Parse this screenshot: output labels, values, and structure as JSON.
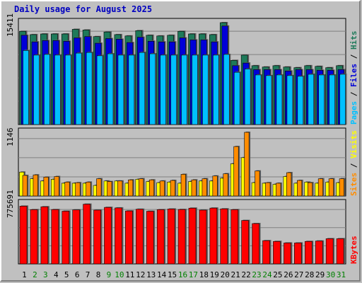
{
  "chart_data": {
    "type": "bar",
    "title": "Daily usage for August 2025",
    "days": [
      "1",
      "2",
      "3",
      "4",
      "5",
      "6",
      "7",
      "8",
      "9",
      "10",
      "11",
      "12",
      "13",
      "14",
      "15",
      "16",
      "17",
      "18",
      "19",
      "20",
      "21",
      "22",
      "23",
      "24",
      "25",
      "26",
      "27",
      "28",
      "29",
      "30",
      "31"
    ],
    "weekend_days": [
      "2",
      "3",
      "9",
      "10",
      "16",
      "17",
      "23",
      "24",
      "30",
      "31"
    ],
    "colors": {
      "hits": "#1e7a5a",
      "files": "#0000d8",
      "pages": "#00c0ff",
      "visits": "#ffff00",
      "sites": "#ff8c00",
      "kbytes": "#ff0000",
      "weekday_label": "#000000",
      "weekend_label": "#008000"
    },
    "panels": [
      {
        "id": "hits-files-pages",
        "max_label": "15411",
        "max": 15411,
        "legend": [
          {
            "text": "Pages",
            "color": "#00c0ff"
          },
          {
            "text": " / ",
            "color": "#000000"
          },
          {
            "text": "Files",
            "color": "#0000d8"
          },
          {
            "text": " / ",
            "color": "#000000"
          },
          {
            "text": "Hits",
            "color": "#1e7a5a"
          }
        ],
        "series": [
          {
            "name": "Hits",
            "values": [
              14100,
              13600,
              13700,
              13700,
              13700,
              14400,
              14300,
              13300,
              14000,
              13600,
              13400,
              14200,
              13500,
              13400,
              13500,
              14100,
              13700,
              13700,
              13600,
              15411,
              9700,
              10500,
              8900,
              8700,
              8900,
              8700,
              8600,
              8900,
              8800,
              8600,
              8900
            ]
          },
          {
            "name": "Files",
            "values": [
              13500,
              12500,
              12700,
              12700,
              12600,
              13100,
              13300,
              12300,
              13000,
              12900,
              12400,
              13200,
              12600,
              12500,
              12500,
              13100,
              12800,
              12800,
              12500,
              14900,
              8900,
              9300,
              8300,
              8300,
              8300,
              8100,
              8300,
              8300,
              8200,
              8200,
              8300
            ]
          },
          {
            "name": "Pages",
            "values": [
              11200,
              10500,
              10600,
              10500,
              10500,
              10800,
              10900,
              10400,
              10700,
              10500,
              10500,
              10900,
              10700,
              10500,
              10500,
              10500,
              10500,
              10500,
              10500,
              10600,
              7900,
              8400,
              7500,
              7400,
              7500,
              7400,
              7300,
              7600,
              7500,
              7500,
              7600
            ]
          }
        ]
      },
      {
        "id": "visits-sites",
        "max_label": "1146",
        "max": 1146,
        "legend": [
          {
            "text": "Sites",
            "color": "#ff8c00"
          },
          {
            "text": " / ",
            "color": "#000000"
          },
          {
            "text": "Visits",
            "color": "#ffff00"
          }
        ],
        "series": [
          {
            "name": "Visits",
            "values": [
              430,
              310,
              270,
              300,
              230,
              230,
              230,
              190,
              270,
              270,
              230,
              300,
              260,
              240,
              250,
              230,
              260,
              270,
              270,
              320,
              580,
              690,
              240,
              230,
              210,
              350,
              230,
              250,
              230,
              250,
              240
            ]
          },
          {
            "name": "Sites",
            "values": [
              370,
              380,
              340,
              350,
              250,
              240,
              250,
              310,
              260,
              270,
              290,
              310,
              290,
              270,
              280,
              390,
              290,
              310,
              360,
              400,
              890,
              1146,
              450,
              240,
              230,
              420,
              280,
              240,
              310,
              310,
              310
            ]
          }
        ]
      },
      {
        "id": "kbytes",
        "max_label": "775691",
        "max": 775691,
        "legend": [
          {
            "text": "KBytes",
            "color": "#ff0000"
          }
        ],
        "series": [
          {
            "name": "KBytes",
            "values": [
              745000,
              700000,
              737000,
              701000,
              680000,
              697000,
              770000,
              694000,
              729000,
              722000,
              683000,
              705000,
              679000,
              700000,
              708000,
              702000,
              719000,
              694000,
              720000,
              710000,
              700000,
              560000,
              520000,
              300000,
              290000,
              270000,
              270000,
              290000,
              295000,
              325000,
              325000
            ]
          }
        ]
      }
    ]
  }
}
